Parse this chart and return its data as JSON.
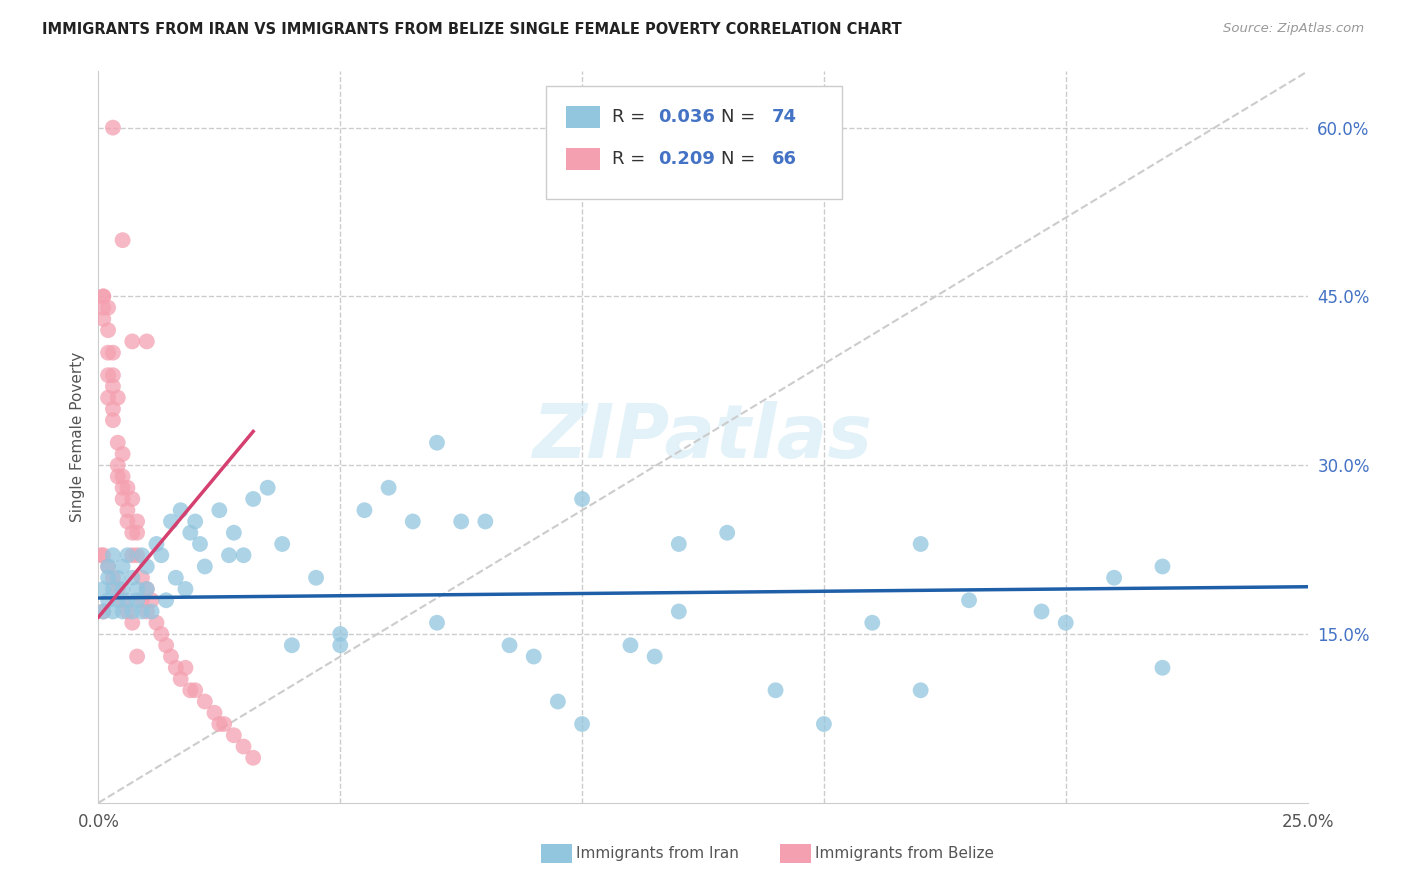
{
  "title": "IMMIGRANTS FROM IRAN VS IMMIGRANTS FROM BELIZE SINGLE FEMALE POVERTY CORRELATION CHART",
  "source": "Source: ZipAtlas.com",
  "xlabel_iran": "Immigrants from Iran",
  "xlabel_belize": "Immigrants from Belize",
  "ylabel": "Single Female Poverty",
  "xlim": [
    0,
    0.25
  ],
  "ylim": [
    0,
    0.65
  ],
  "x_ticks": [
    0.0,
    0.05,
    0.1,
    0.15,
    0.2,
    0.25
  ],
  "x_tick_labels": [
    "0.0%",
    "",
    "",
    "",
    "",
    "25.0%"
  ],
  "y_ticks_right": [
    0.15,
    0.3,
    0.45,
    0.6
  ],
  "y_tick_labels_right": [
    "15.0%",
    "30.0%",
    "45.0%",
    "60.0%"
  ],
  "iran_R": 0.036,
  "iran_N": 74,
  "belize_R": 0.209,
  "belize_N": 66,
  "iran_color": "#92C5DE",
  "belize_color": "#F4A0B0",
  "iran_line_color": "#1E5FA8",
  "belize_line_color": "#D44070",
  "watermark": "ZIPatlas",
  "iran_line_x0": 0.0,
  "iran_line_x1": 0.25,
  "iran_line_y0": 0.182,
  "iran_line_y1": 0.192,
  "belize_line_x0": 0.0,
  "belize_line_x1": 0.032,
  "belize_line_y0": 0.165,
  "belize_line_y1": 0.33,
  "iran_x": [
    0.001,
    0.001,
    0.002,
    0.002,
    0.002,
    0.003,
    0.003,
    0.003,
    0.004,
    0.004,
    0.005,
    0.005,
    0.005,
    0.006,
    0.006,
    0.007,
    0.007,
    0.008,
    0.008,
    0.009,
    0.009,
    0.01,
    0.01,
    0.011,
    0.012,
    0.013,
    0.014,
    0.015,
    0.016,
    0.017,
    0.018,
    0.019,
    0.02,
    0.021,
    0.022,
    0.025,
    0.027,
    0.028,
    0.03,
    0.032,
    0.035,
    0.038,
    0.04,
    0.045,
    0.05,
    0.055,
    0.06,
    0.065,
    0.07,
    0.075,
    0.08,
    0.085,
    0.09,
    0.095,
    0.1,
    0.11,
    0.115,
    0.12,
    0.13,
    0.14,
    0.15,
    0.16,
    0.17,
    0.18,
    0.195,
    0.2,
    0.21,
    0.22,
    0.05,
    0.07,
    0.1,
    0.12,
    0.17,
    0.22
  ],
  "iran_y": [
    0.19,
    0.17,
    0.21,
    0.18,
    0.2,
    0.19,
    0.17,
    0.22,
    0.18,
    0.2,
    0.17,
    0.19,
    0.21,
    0.18,
    0.22,
    0.17,
    0.2,
    0.19,
    0.18,
    0.17,
    0.22,
    0.19,
    0.21,
    0.17,
    0.23,
    0.22,
    0.18,
    0.25,
    0.2,
    0.26,
    0.19,
    0.24,
    0.25,
    0.23,
    0.21,
    0.26,
    0.22,
    0.24,
    0.22,
    0.27,
    0.28,
    0.23,
    0.14,
    0.2,
    0.14,
    0.26,
    0.28,
    0.25,
    0.32,
    0.25,
    0.25,
    0.14,
    0.13,
    0.09,
    0.07,
    0.14,
    0.13,
    0.17,
    0.24,
    0.1,
    0.07,
    0.16,
    0.1,
    0.18,
    0.17,
    0.16,
    0.2,
    0.12,
    0.15,
    0.16,
    0.27,
    0.23,
    0.23,
    0.21
  ],
  "belize_x": [
    0.0005,
    0.001,
    0.001,
    0.001,
    0.001,
    0.001,
    0.002,
    0.002,
    0.002,
    0.002,
    0.002,
    0.003,
    0.003,
    0.003,
    0.003,
    0.003,
    0.004,
    0.004,
    0.004,
    0.004,
    0.005,
    0.005,
    0.005,
    0.005,
    0.006,
    0.006,
    0.006,
    0.007,
    0.007,
    0.007,
    0.008,
    0.008,
    0.008,
    0.009,
    0.009,
    0.01,
    0.01,
    0.011,
    0.012,
    0.013,
    0.014,
    0.015,
    0.016,
    0.017,
    0.018,
    0.019,
    0.02,
    0.022,
    0.024,
    0.025,
    0.026,
    0.028,
    0.03,
    0.032,
    0.001,
    0.002,
    0.003,
    0.004,
    0.005,
    0.006,
    0.007,
    0.008,
    0.003,
    0.005,
    0.007,
    0.01
  ],
  "belize_y": [
    0.22,
    0.45,
    0.44,
    0.43,
    0.45,
    0.22,
    0.42,
    0.44,
    0.4,
    0.38,
    0.36,
    0.4,
    0.37,
    0.35,
    0.34,
    0.38,
    0.32,
    0.36,
    0.3,
    0.29,
    0.31,
    0.28,
    0.27,
    0.29,
    0.26,
    0.28,
    0.25,
    0.27,
    0.24,
    0.22,
    0.25,
    0.24,
    0.22,
    0.2,
    0.18,
    0.19,
    0.17,
    0.18,
    0.16,
    0.15,
    0.14,
    0.13,
    0.12,
    0.11,
    0.12,
    0.1,
    0.1,
    0.09,
    0.08,
    0.07,
    0.07,
    0.06,
    0.05,
    0.04,
    0.17,
    0.21,
    0.2,
    0.19,
    0.18,
    0.17,
    0.16,
    0.13,
    0.6,
    0.5,
    0.41,
    0.41
  ]
}
